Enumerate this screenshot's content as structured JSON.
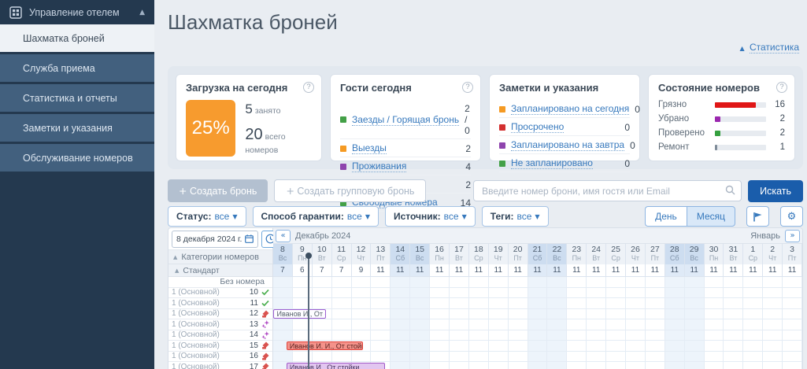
{
  "sidebar": {
    "header_label": "Управление отелем",
    "items": [
      {
        "label": "Шахматка броней",
        "active": true
      },
      {
        "label": "Служба приема",
        "active": false
      },
      {
        "label": "Статистика и отчеты",
        "active": false
      },
      {
        "label": "Заметки и указания",
        "active": false
      },
      {
        "label": "Обслуживание номеров",
        "active": false
      }
    ]
  },
  "page": {
    "title": "Шахматка броней",
    "statistics_link": "Статистика"
  },
  "cards": {
    "occupancy": {
      "title": "Загрузка на сегодня",
      "percent": "25%",
      "accent_color": "#f79b2e",
      "occupied_value": "5",
      "occupied_label": "занято",
      "total_value": "20",
      "total_label": "всего номеров"
    },
    "guests": {
      "title": "Гости сегодня",
      "items": [
        {
          "label": "Заезды / Горящая бронь",
          "value": "2 / 0",
          "color": "#43a047"
        },
        {
          "label": "Выезды",
          "value": "2",
          "color": "#f59a23"
        },
        {
          "label": "Проживания",
          "value": "4",
          "color": "#8e44ad"
        },
        {
          "label": "Незаезды",
          "value": "2",
          "color": "#d32f2f"
        },
        {
          "label": "Свободные номера",
          "value": "14",
          "color": "#43a047"
        }
      ]
    },
    "notes": {
      "title": "Заметки и указания",
      "items": [
        {
          "label": "Запланировано на сегодня",
          "value": "0",
          "color": "#f59a23"
        },
        {
          "label": "Просрочено",
          "value": "0",
          "color": "#d32f2f"
        },
        {
          "label": "Запланировано на завтра",
          "value": "0",
          "color": "#8e44ad"
        },
        {
          "label": "Не запланировано",
          "value": "0",
          "color": "#43a047"
        }
      ]
    },
    "room_states": {
      "title": "Состояние номеров",
      "items": [
        {
          "label": "Грязно",
          "value": "16",
          "pct": 80,
          "color": "#e01717"
        },
        {
          "label": "Убрано",
          "value": "2",
          "pct": 10,
          "color": "#9b27af"
        },
        {
          "label": "Проверено",
          "value": "2",
          "pct": 10,
          "color": "#35a03f"
        },
        {
          "label": "Ремонт",
          "value": "1",
          "pct": 5,
          "color": "#7f8c99"
        }
      ]
    }
  },
  "toolbar": {
    "create_booking": "Создать бронь",
    "create_group_booking": "Создать групповую бронь",
    "search_placeholder": "Введите номер брони, имя гостя или Email",
    "search_button": "Искать"
  },
  "filters": [
    {
      "label": "Статус:",
      "value": "все"
    },
    {
      "label": "Способ гарантии:",
      "value": "все"
    },
    {
      "label": "Источник:",
      "value": "все"
    },
    {
      "label": "Теги:",
      "value": "все"
    }
  ],
  "view_controls": {
    "day": "День",
    "month": "Месяц",
    "active": "Месяц"
  },
  "chessboard": {
    "date_value": "8 декабря 2024 г.",
    "categories_header": "Категории номеров",
    "category": "Стандарт",
    "no_room_label": "Без номера",
    "month_label": "Декабрь 2024",
    "next_month_label": "Январь",
    "days": [
      {
        "num": "8",
        "dow": "Вс",
        "weekend": true,
        "avail": "7"
      },
      {
        "num": "9",
        "dow": "Пн",
        "weekend": false,
        "avail": "6",
        "today": true
      },
      {
        "num": "10",
        "dow": "Вт",
        "weekend": false,
        "avail": "7"
      },
      {
        "num": "11",
        "dow": "Ср",
        "weekend": false,
        "avail": "7"
      },
      {
        "num": "12",
        "dow": "Чт",
        "weekend": false,
        "avail": "9"
      },
      {
        "num": "13",
        "dow": "Пт",
        "weekend": false,
        "avail": "11"
      },
      {
        "num": "14",
        "dow": "Сб",
        "weekend": true,
        "avail": "11"
      },
      {
        "num": "15",
        "dow": "Вс",
        "weekend": true,
        "avail": "11"
      },
      {
        "num": "16",
        "dow": "Пн",
        "weekend": false,
        "avail": "11"
      },
      {
        "num": "17",
        "dow": "Вт",
        "weekend": false,
        "avail": "11"
      },
      {
        "num": "18",
        "dow": "Ср",
        "weekend": false,
        "avail": "11"
      },
      {
        "num": "19",
        "dow": "Чт",
        "weekend": false,
        "avail": "11"
      },
      {
        "num": "20",
        "dow": "Пт",
        "weekend": false,
        "avail": "11"
      },
      {
        "num": "21",
        "dow": "Сб",
        "weekend": true,
        "avail": "11"
      },
      {
        "num": "22",
        "dow": "Вс",
        "weekend": true,
        "avail": "11"
      },
      {
        "num": "23",
        "dow": "Пн",
        "weekend": false,
        "avail": "11"
      },
      {
        "num": "24",
        "dow": "Вт",
        "weekend": false,
        "avail": "11"
      },
      {
        "num": "25",
        "dow": "Ср",
        "weekend": false,
        "avail": "11"
      },
      {
        "num": "26",
        "dow": "Чт",
        "weekend": false,
        "avail": "11"
      },
      {
        "num": "27",
        "dow": "Пт",
        "weekend": false,
        "avail": "11"
      },
      {
        "num": "28",
        "dow": "Сб",
        "weekend": true,
        "avail": "11"
      },
      {
        "num": "29",
        "dow": "Вс",
        "weekend": true,
        "avail": "11"
      },
      {
        "num": "30",
        "dow": "Пн",
        "weekend": false,
        "avail": "11"
      },
      {
        "num": "31",
        "dow": "Вт",
        "weekend": false,
        "avail": "11"
      },
      {
        "num": "1",
        "dow": "Ср",
        "weekend": false,
        "avail": "11"
      },
      {
        "num": "2",
        "dow": "Чт",
        "weekend": false,
        "avail": "11"
      },
      {
        "num": "3",
        "dow": "Пт",
        "weekend": false,
        "avail": "11"
      }
    ],
    "rooms": [
      {
        "type": "1 (Основной)",
        "num": "10",
        "status": "checked"
      },
      {
        "type": "1 (Основной)",
        "num": "11",
        "status": "checked"
      },
      {
        "type": "1 (Основной)",
        "num": "12",
        "status": "dirty"
      },
      {
        "type": "1 (Основной)",
        "num": "13",
        "status": "cleaned"
      },
      {
        "type": "1 (Основной)",
        "num": "14",
        "status": "cleaned"
      },
      {
        "type": "1 (Основной)",
        "num": "15",
        "status": "dirty"
      },
      {
        "type": "1 (Основной)",
        "num": "16",
        "status": "dirty"
      },
      {
        "type": "1 (Основной)",
        "num": "17",
        "status": "dirty"
      }
    ],
    "bookings": [
      {
        "room": "12",
        "label": "Иванов И., От стс",
        "variant": "outline",
        "start": 0.02,
        "end": 2.7
      },
      {
        "room": "15",
        "label": "Иванов И. И., От стойки",
        "variant": "red",
        "start": 0.68,
        "end": 4.6
      },
      {
        "room": "17",
        "label": "Иванов И., От стойки",
        "variant": "violet",
        "start": 0.68,
        "end": 5.72
      }
    ],
    "today_marker_col": 1.78
  }
}
